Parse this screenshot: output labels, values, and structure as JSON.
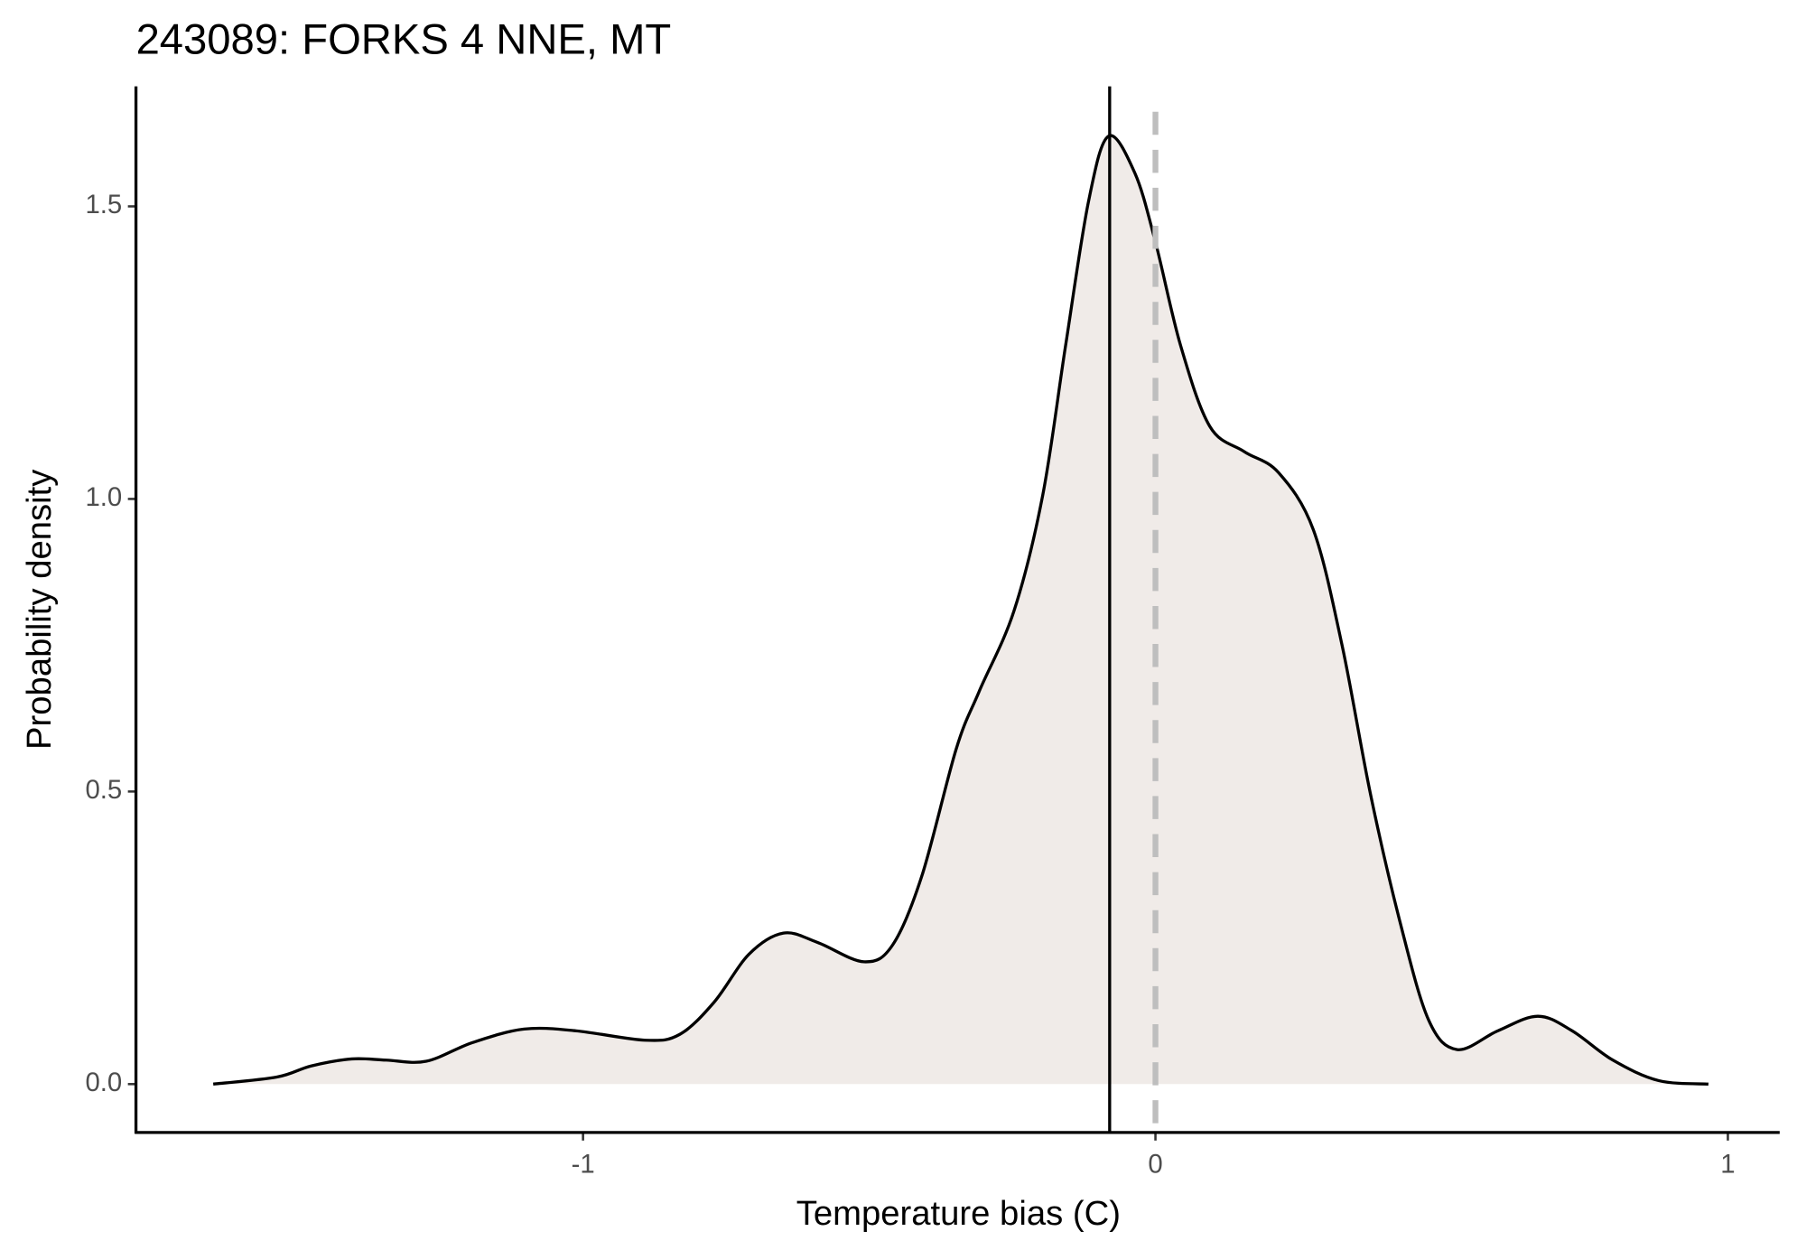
{
  "chart_data": {
    "type": "area",
    "title": "243089: FORKS 4 NNE, MT",
    "x_label": "Temperature bias (C)",
    "y_label": "Probability density",
    "x": [
      -1.646,
      -1.535,
      -1.475,
      -1.404,
      -1.344,
      -1.274,
      -1.193,
      -1.103,
      -1.012,
      -0.891,
      -0.831,
      -0.771,
      -0.71,
      -0.65,
      -0.59,
      -0.509,
      -0.459,
      -0.408,
      -0.348,
      -0.308,
      -0.247,
      -0.197,
      -0.157,
      -0.117,
      -0.082,
      -0.036,
      0,
      0.044,
      0.095,
      0.155,
      0.215,
      0.276,
      0.326,
      0.376,
      0.427,
      0.477,
      0.527,
      0.598,
      0.668,
      0.728,
      0.799,
      0.879,
      0.966
    ],
    "values": [
      0,
      0.012,
      0.031,
      0.043,
      0.041,
      0.039,
      0.071,
      0.094,
      0.091,
      0.075,
      0.085,
      0.14,
      0.222,
      0.258,
      0.242,
      0.209,
      0.238,
      0.356,
      0.573,
      0.671,
      0.809,
      1.006,
      1.262,
      1.508,
      1.62,
      1.557,
      1.439,
      1.262,
      1.124,
      1.081,
      1.045,
      0.947,
      0.75,
      0.494,
      0.278,
      0.11,
      0.059,
      0.091,
      0.116,
      0.091,
      0.041,
      0.006,
      0
    ],
    "color": "#f0ebe8",
    "line_color": "#000000",
    "reference_lines": [
      {
        "x": -0.08,
        "style": "solid",
        "color": "#000000"
      },
      {
        "x": 0,
        "style": "dashed",
        "color": "#bebebe"
      }
    ],
    "xlim": [
      -1.781,
      1.0905
    ],
    "ylim": [
      -0.0827,
      1.705
    ],
    "xticks": [
      -1,
      0,
      1
    ],
    "yticks": [
      {
        "value": 0,
        "label": "0.0"
      },
      0.5,
      {
        "value": 1,
        "label": "1.0"
      },
      1.5
    ],
    "grid": false
  }
}
